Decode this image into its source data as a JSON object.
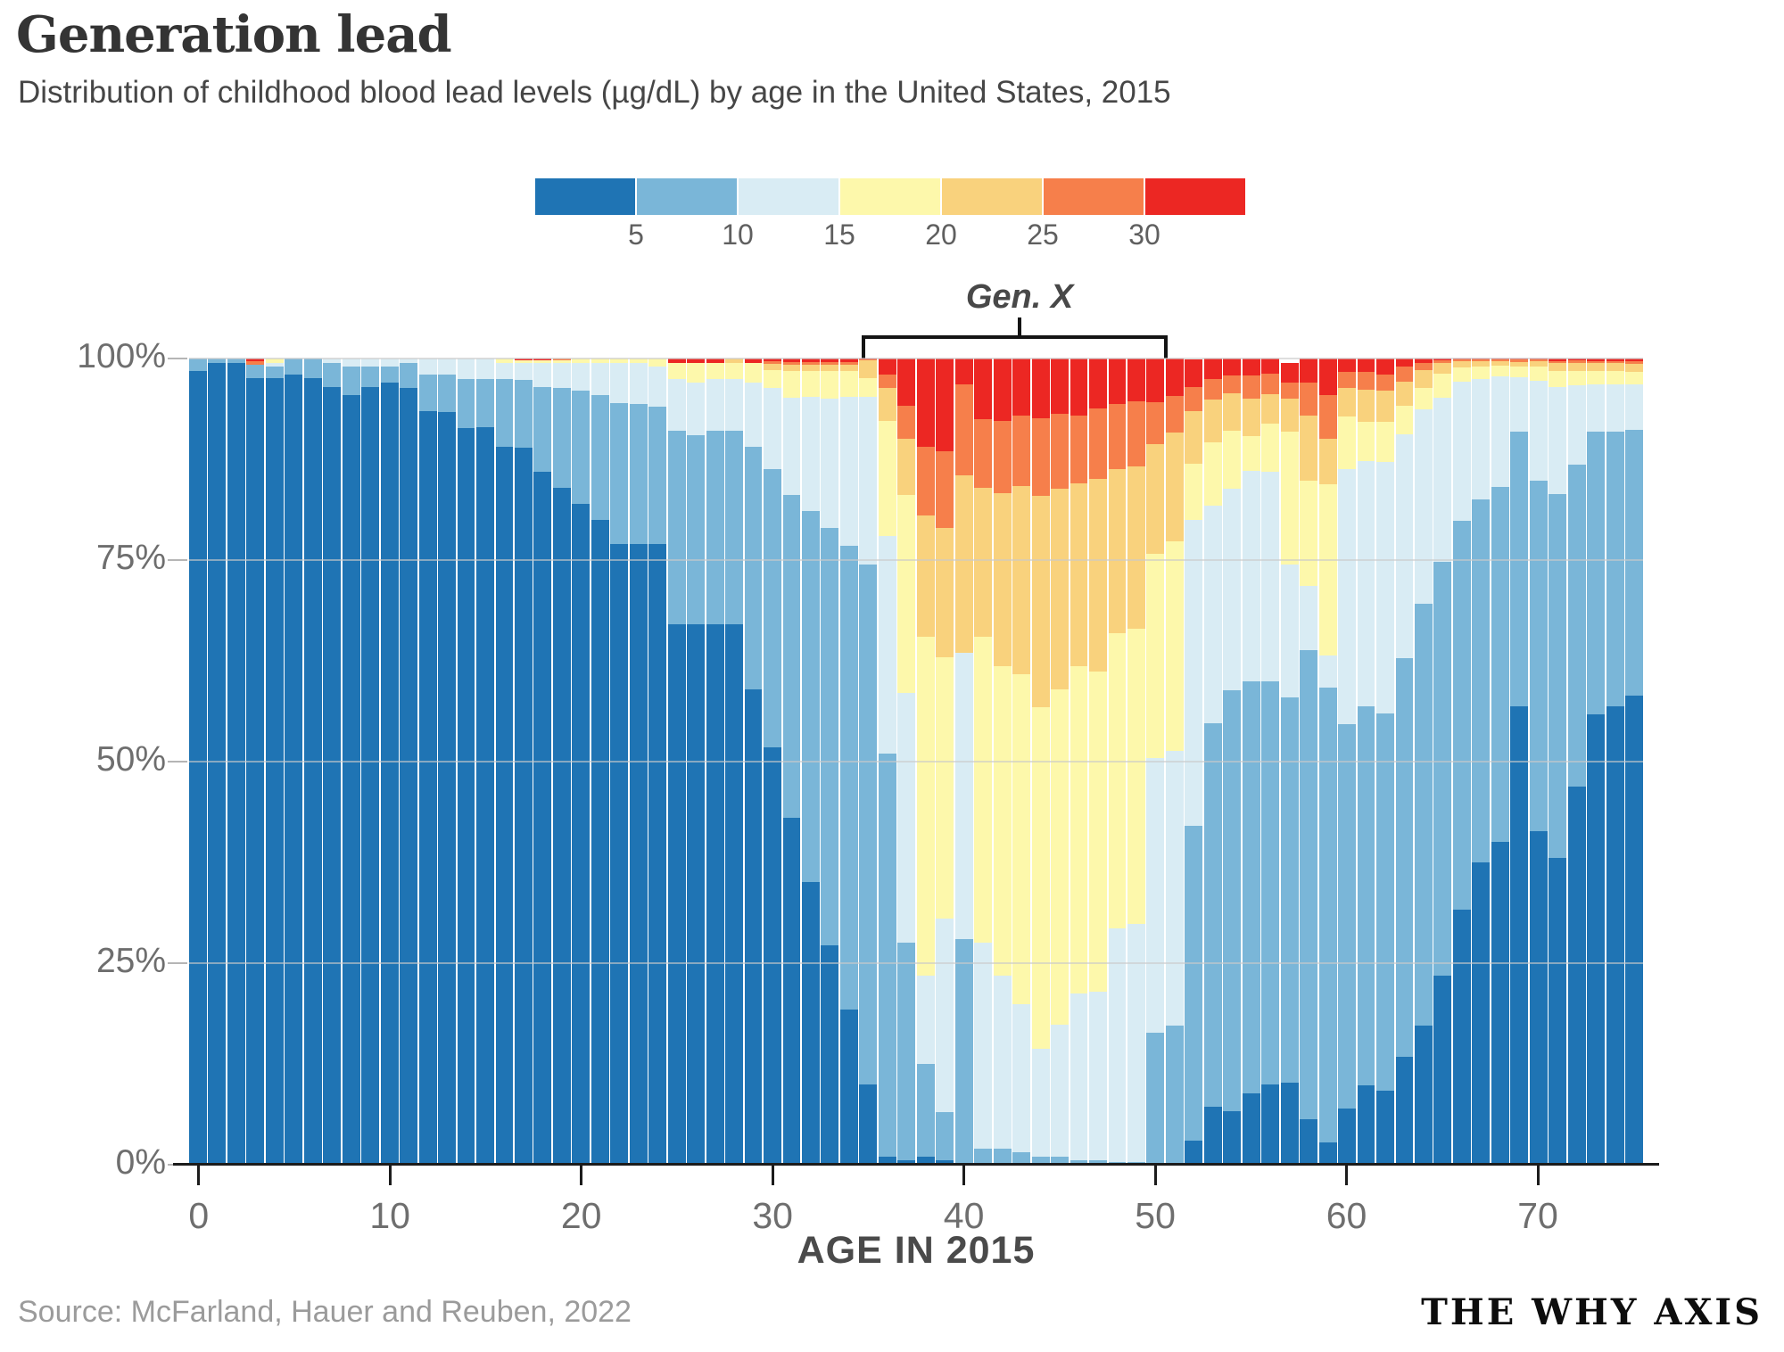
{
  "header": {
    "title": "Generation lead",
    "subtitle": "Distribution of childhood blood lead levels (µg/dL) by age in the United States, 2015"
  },
  "legend": {
    "boundary_labels": [
      "5",
      "10",
      "15",
      "20",
      "25",
      "30"
    ]
  },
  "annotation": {
    "label": "Gen. X"
  },
  "axes": {
    "y_tick_labels": [
      "0%",
      "25%",
      "50%",
      "75%",
      "100%"
    ],
    "y_tick_values": [
      0,
      25,
      50,
      75,
      100
    ],
    "x_tick_labels": [
      "0",
      "10",
      "20",
      "30",
      "40",
      "50",
      "60",
      "70"
    ],
    "x_tick_values": [
      0,
      10,
      20,
      30,
      40,
      50,
      60,
      70
    ],
    "x_caption": "AGE IN 2015"
  },
  "footer": {
    "source": "Source: McFarland, Hauer and Reuben, 2022",
    "brand": "THE WHY AXIS"
  },
  "colors": {
    "grid": "#c9c9c9",
    "axis": "#1c1c1c",
    "title_text": "#343434",
    "tick_text": "#6e6e6e"
  },
  "chart_data": {
    "type": "bar",
    "stacked": true,
    "normalized_percent": true,
    "title": "Generation lead",
    "subtitle": "Distribution of childhood blood lead levels (µg/dL) by age in the United States, 2015",
    "xlabel": "AGE IN 2015",
    "ylabel": "",
    "ylim": [
      0,
      100
    ],
    "grid": "horizontal",
    "legend_position": "top",
    "gen_x_age_span": [
      35.5,
      51.5
    ],
    "categories": [
      0,
      1,
      2,
      3,
      4,
      5,
      6,
      7,
      8,
      9,
      10,
      11,
      12,
      13,
      14,
      15,
      16,
      17,
      18,
      19,
      20,
      21,
      22,
      23,
      24,
      25,
      26,
      27,
      28,
      29,
      30,
      31,
      32,
      33,
      34,
      35,
      36,
      37,
      38,
      39,
      40,
      41,
      42,
      43,
      44,
      45,
      46,
      47,
      48,
      49,
      50,
      51,
      52,
      53,
      54,
      55,
      56,
      57,
      58,
      59,
      60,
      61,
      62,
      63,
      64,
      65,
      66,
      67,
      68,
      69,
      70,
      71,
      72,
      73,
      74,
      75
    ],
    "series": [
      {
        "name": "<5",
        "color": "#1f74b4",
        "values": [
          98.5,
          99.5,
          99.4,
          97.6,
          97.6,
          98,
          97.6,
          96.5,
          95.5,
          96.5,
          97,
          96.4,
          93.5,
          93.4,
          91.4,
          91.5,
          89,
          88.9,
          86,
          84,
          82,
          80,
          77,
          77,
          77,
          67,
          67,
          67,
          67,
          59,
          51.8,
          43,
          35.1,
          27.2,
          19.2,
          10,
          1,
          0.5,
          1,
          0.5,
          0,
          0,
          0,
          0,
          0,
          0,
          0,
          0,
          0,
          0,
          0,
          0,
          3,
          7.2,
          6.6,
          8.9,
          10,
          10.2,
          5.6,
          2.8,
          7,
          9.9,
          9.2,
          13.4,
          17.3,
          23.5,
          31.6,
          37.5,
          40.1,
          56.9,
          41.4,
          38.1,
          46.9,
          55.9,
          56.9,
          58.2
        ]
      },
      {
        "name": "5-10",
        "color": "#7ab6d8",
        "values": [
          1.5,
          0.5,
          0.6,
          1.6,
          1.4,
          2,
          2.4,
          3,
          3.5,
          2.5,
          2,
          3.1,
          4.5,
          4.6,
          6.1,
          6,
          8.5,
          8.5,
          10.5,
          12.4,
          14,
          15.5,
          17.5,
          17.4,
          17,
          24,
          23.5,
          24,
          24,
          30,
          34.5,
          40.1,
          46,
          51.8,
          57.6,
          64.5,
          50,
          27,
          11.5,
          6,
          28,
          2,
          2,
          1.5,
          1,
          1,
          0.5,
          0.5,
          0.3,
          0.3,
          16.4,
          17.3,
          39,
          47.6,
          52.2,
          51.1,
          50,
          47.8,
          58.2,
          56.4,
          47.6,
          47,
          46.8,
          49.4,
          52.3,
          51.3,
          48.3,
          45,
          44,
          34,
          43.4,
          45.1,
          39.9,
          35,
          34,
          33
        ]
      },
      {
        "name": "10-15",
        "color": "#d9ecf4",
        "values": [
          0,
          0,
          0,
          0,
          0.4,
          0,
          0,
          0.5,
          1,
          1,
          1,
          0.5,
          2,
          2,
          2.5,
          2.5,
          2,
          2.1,
          3,
          3.1,
          3.5,
          4,
          5,
          5,
          5,
          6.5,
          6.5,
          6.5,
          6.5,
          8,
          10,
          12,
          14.1,
          16,
          18.4,
          20.7,
          27,
          31,
          11,
          24,
          35.5,
          25.5,
          21.5,
          18.4,
          13.4,
          16.4,
          20.7,
          21,
          29,
          29.6,
          34.1,
          34,
          38,
          27,
          25,
          26.1,
          26,
          16.4,
          8,
          4,
          31.7,
          30.4,
          31.2,
          27.8,
          24.1,
          20.3,
          17.2,
          15,
          13.7,
          6.8,
          12.4,
          13.3,
          9.9,
          5.9,
          5.9,
          5.6
        ]
      },
      {
        "name": "15-20",
        "color": "#fdf8ab",
        "values": [
          0,
          0,
          0,
          0,
          0.6,
          0,
          0,
          0,
          0,
          0,
          0,
          0,
          0,
          0,
          0,
          0,
          0.5,
          0.3,
          0.3,
          0.3,
          0.5,
          0.5,
          0.5,
          0.6,
          1,
          2,
          2.5,
          2,
          2,
          2.5,
          2.3,
          3.4,
          3.3,
          3.5,
          3.3,
          2.4,
          14.3,
          24.6,
          42,
          32.5,
          0,
          38,
          38.3,
          41,
          42.4,
          41.6,
          40.6,
          39.7,
          36.6,
          36.6,
          25.3,
          26,
          7,
          7.8,
          7.2,
          4.3,
          5.9,
          16.5,
          13,
          21.2,
          6.5,
          4.9,
          4.9,
          3.5,
          2.7,
          3,
          1.8,
          1.5,
          1.3,
          1.3,
          1.8,
          1.9,
          1.8,
          1.7,
          1.7,
          1.6
        ]
      },
      {
        "name": "20-25",
        "color": "#f9d27d",
        "values": [
          0,
          0,
          0,
          0,
          0,
          0,
          0,
          0,
          0,
          0,
          0,
          0,
          0,
          0,
          0,
          0,
          0,
          0,
          0,
          0,
          0,
          0,
          0,
          0,
          0,
          0,
          0,
          0,
          0.5,
          0,
          0.7,
          0.7,
          0.7,
          0.7,
          0.7,
          2.2,
          4,
          7,
          15,
          16,
          22,
          18.5,
          21.5,
          23.3,
          26.2,
          24.9,
          22.7,
          23.9,
          20.4,
          20.1,
          13.6,
          13.5,
          6.5,
          5.3,
          4.7,
          4.6,
          3.7,
          4.1,
          8.1,
          5.6,
          3.6,
          3.9,
          3.9,
          3,
          2.2,
          1.3,
          0.8,
          0.7,
          0.6,
          0.6,
          0.7,
          1,
          1,
          0.9,
          0.9,
          0.9
        ]
      },
      {
        "name": "25-30",
        "color": "#f67f4b",
        "values": [
          0,
          0,
          0,
          0.5,
          0,
          0,
          0,
          0,
          0,
          0,
          0,
          0,
          0,
          0,
          0,
          0,
          0,
          0,
          0,
          0.2,
          0,
          0,
          0,
          0,
          0,
          0,
          0,
          0,
          0,
          0,
          0.4,
          0.4,
          0.4,
          0.4,
          0.4,
          0.1,
          1.7,
          4,
          8.5,
          9.5,
          11.3,
          8.5,
          9,
          8.7,
          9.6,
          9.3,
          8.4,
          8.7,
          8.1,
          8.1,
          5.2,
          4.6,
          3,
          2.6,
          2.2,
          2.9,
          2.5,
          2,
          4.1,
          5.5,
          2,
          2.3,
          2,
          1.9,
          0.9,
          0.4,
          0.2,
          0.2,
          0.2,
          0.3,
          0.2,
          0.3,
          0.3,
          0.3,
          0.3,
          0.4
        ]
      },
      {
        "name": ">30",
        "color": "#ec2723",
        "values": [
          0,
          0,
          0,
          0.3,
          0,
          0,
          0,
          0,
          0,
          0,
          0,
          0,
          0,
          0,
          0,
          0,
          0,
          0.2,
          0.2,
          0,
          0,
          0,
          0,
          0,
          0,
          0.5,
          0.5,
          0.5,
          0,
          0.5,
          0.3,
          0.4,
          0.4,
          0.4,
          0.4,
          0.1,
          2,
          5.9,
          11,
          11.5,
          3.2,
          7.5,
          7.7,
          7.1,
          7.4,
          6.8,
          7.1,
          6.2,
          5.6,
          5.3,
          5.4,
          4.6,
          3.4,
          2.5,
          2.1,
          2.1,
          1.9,
          2.4,
          3,
          4.5,
          1.6,
          1.6,
          2,
          1,
          0.5,
          0.2,
          0.1,
          0.1,
          0.1,
          0.1,
          0.1,
          0.3,
          0.2,
          0.3,
          0.3,
          0.3
        ]
      }
    ]
  }
}
